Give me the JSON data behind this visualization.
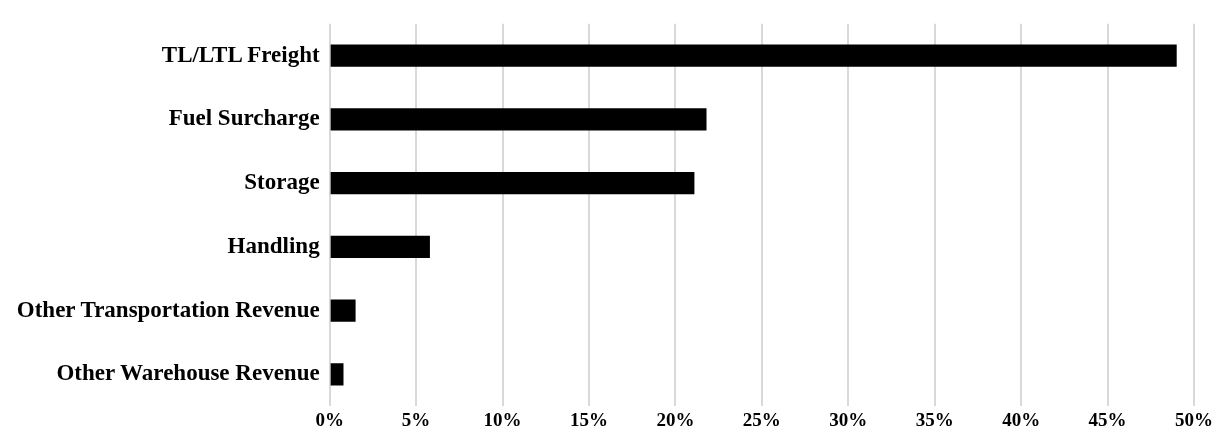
{
  "chart_data": {
    "type": "bar",
    "orientation": "horizontal",
    "categories": [
      "TL/LTL Freight",
      "Fuel Surcharge",
      "Storage",
      "Handling",
      "Other Transportation Revenue",
      "Other Warehouse Revenue"
    ],
    "values": [
      49.0,
      21.8,
      21.1,
      5.8,
      1.5,
      0.8
    ],
    "color": "#000000",
    "xlim": [
      0,
      50
    ],
    "xticks": [
      {
        "value": 0,
        "label": "0%"
      },
      {
        "value": 5,
        "label": "5%"
      },
      {
        "value": 10,
        "label": "10%"
      },
      {
        "value": 15,
        "label": "15%"
      },
      {
        "value": 20,
        "label": "20%"
      },
      {
        "value": 25,
        "label": "25%"
      },
      {
        "value": 30,
        "label": "30%"
      },
      {
        "value": 35,
        "label": "35%"
      },
      {
        "value": 40,
        "label": "40%"
      },
      {
        "value": 45,
        "label": "45%"
      },
      {
        "value": 50,
        "label": "50%"
      }
    ],
    "grid": "x",
    "legend": false
  }
}
